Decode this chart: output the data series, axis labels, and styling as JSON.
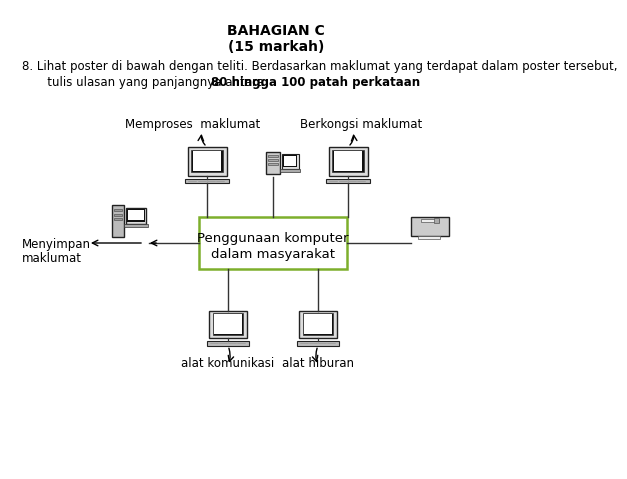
{
  "title1": "BAHAGIAN C",
  "title2": "(15 markah)",
  "instruction_line1": "8. Lihat poster di bawah dengan teliti. Berdasarkan maklumat yang terdapat dalam poster tersebut,",
  "instruction_line2_normal": "   tulis ulasan yang panjangnya antara ",
  "instruction_line2_bold": "80 hingga 100 patah perkataan",
  "instruction_line2_end": ".",
  "center_label_line1": "Penggunaan komputer",
  "center_label_line2": "dalam masyarakat",
  "center_box_color": "#7daf2c",
  "labels": {
    "top_left": "Memproses  maklumat",
    "top_right": "Berkongsi maklumat",
    "left_1": "Menyimpan",
    "left_2": "maklumat",
    "bottom_left": "alat komunikasi",
    "bottom_right": "alat hiburan"
  },
  "bg_color": "#ffffff",
  "text_color": "#000000"
}
